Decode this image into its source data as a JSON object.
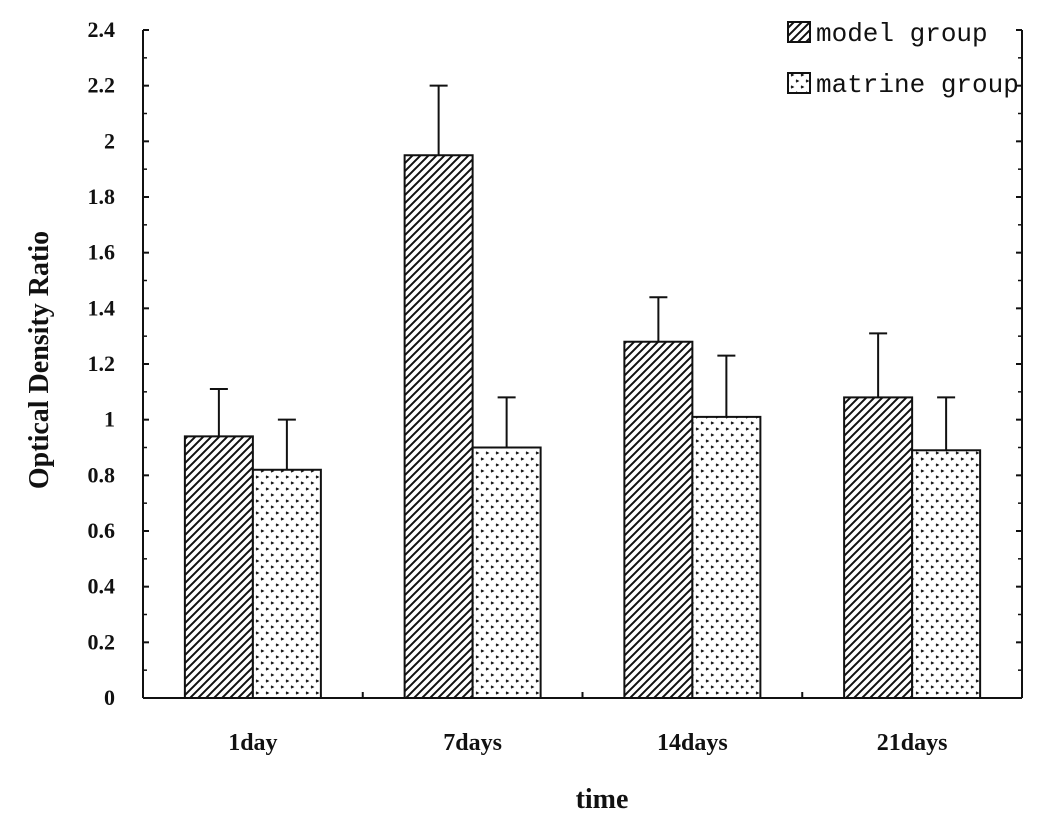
{
  "chart_data": {
    "type": "bar",
    "categories": [
      "1day",
      "7days",
      "14days",
      "21days"
    ],
    "series": [
      {
        "name": "model group",
        "values": [
          0.94,
          1.95,
          1.28,
          1.08
        ],
        "errors": [
          0.17,
          0.25,
          0.16,
          0.23
        ],
        "pattern": "diagonal-hatch"
      },
      {
        "name": "matrine group",
        "values": [
          0.82,
          0.9,
          1.01,
          0.89
        ],
        "errors": [
          0.18,
          0.18,
          0.22,
          0.19
        ],
        "pattern": "dots"
      }
    ],
    "xlabel": "time",
    "ylabel": "Optical Density Ratio",
    "ylim": [
      0,
      2.4
    ],
    "yticks": [
      "0",
      "0.2",
      "0.4",
      "0.6",
      "0.8",
      "1",
      "1.2",
      "1.4",
      "1.6",
      "1.8",
      "2",
      "2.2",
      "2.4"
    ],
    "grid": false,
    "legend_position": "top-right",
    "colors": {
      "stroke": "#111111",
      "background": "#ffffff"
    }
  }
}
